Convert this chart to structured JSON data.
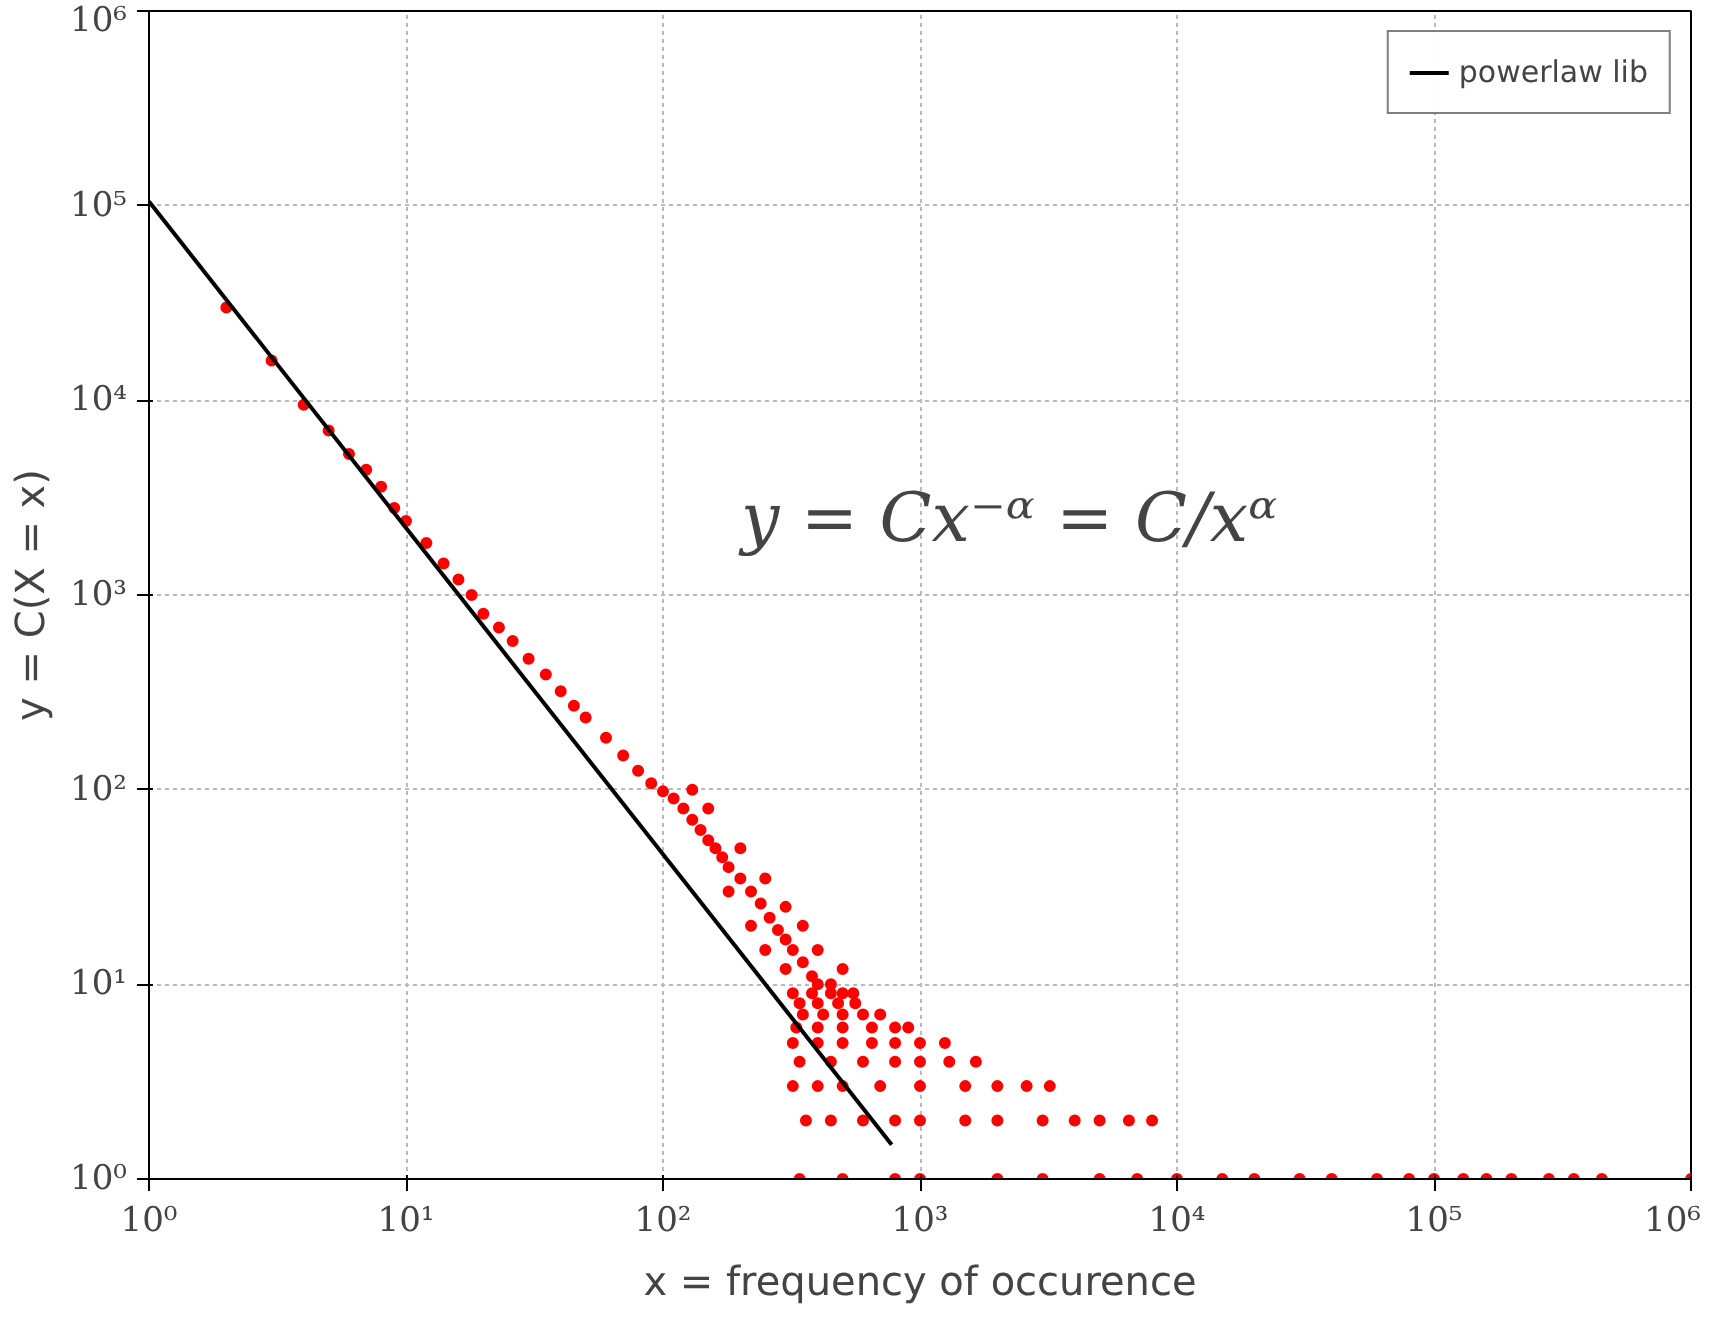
{
  "chart_data": {
    "type": "scatter",
    "xlabel": "x = frequency of occurence",
    "ylabel": "y = C(X = x)",
    "annotations": [
      "y = Cx⁻ᵅ = C/xᵅ"
    ],
    "log": "xy",
    "grid": true,
    "legend": "top right",
    "xlim": [
      1,
      1000000
    ],
    "ylim": [
      1,
      1000000
    ],
    "xticks": [
      {
        "value": 1,
        "label": "10⁰"
      },
      {
        "value": 10,
        "label": "10¹"
      },
      {
        "value": 100,
        "label": "10²"
      },
      {
        "value": 1000,
        "label": "10³"
      },
      {
        "value": 10000,
        "label": "10⁴"
      },
      {
        "value": 100000,
        "label": "10⁵"
      },
      {
        "value": 1000000,
        "label": "10⁶"
      }
    ],
    "yticks": [
      {
        "value": 1,
        "label": "10⁰"
      },
      {
        "value": 10,
        "label": "10¹"
      },
      {
        "value": 100,
        "label": "10²"
      },
      {
        "value": 1000,
        "label": "10³"
      },
      {
        "value": 10000,
        "label": "10⁴"
      },
      {
        "value": 100000,
        "label": "10⁵"
      },
      {
        "value": 1000000,
        "label": "10⁶"
      }
    ],
    "series": [
      {
        "marker": "circle",
        "color": "#ff0000",
        "x": [
          2,
          3,
          4,
          5,
          6,
          7,
          8,
          9,
          10,
          12,
          14,
          16,
          18,
          20,
          23,
          26,
          30,
          35,
          40,
          45,
          50,
          60,
          70,
          80,
          90,
          100,
          110,
          120,
          130,
          140,
          150,
          160,
          170,
          180,
          200,
          220,
          240,
          260,
          280,
          300,
          320,
          350,
          380,
          400,
          130,
          150,
          200,
          250,
          300,
          400,
          350,
          500,
          450,
          300,
          250,
          220,
          180,
          320,
          380,
          450,
          500,
          550,
          340,
          400,
          480,
          560,
          350,
          420,
          500,
          600,
          700,
          330,
          400,
          500,
          650,
          800,
          900,
          320,
          400,
          500,
          650,
          800,
          1000,
          1250,
          340,
          450,
          600,
          800,
          1000,
          1300,
          1650,
          320,
          400,
          500,
          700,
          1000,
          1500,
          2000,
          2600,
          3200,
          360,
          450,
          600,
          800,
          1000,
          1500,
          2000,
          3000,
          4000,
          5000,
          6500,
          8000,
          340,
          500,
          800,
          1000,
          2000,
          3000,
          5000,
          7000,
          10000,
          15000,
          20000,
          30000,
          40000,
          60000,
          80000,
          100000,
          130000,
          160000,
          200000,
          280000,
          350000,
          450000,
          1000000
        ],
        "values": [
          30000,
          16000,
          9500,
          7000,
          5300,
          4400,
          3600,
          2800,
          2400,
          1850,
          1450,
          1200,
          1000,
          800,
          680,
          580,
          470,
          390,
          320,
          270,
          235,
          185,
          150,
          125,
          108,
          98,
          90,
          80,
          70,
          62,
          55,
          50,
          45,
          40,
          35,
          30,
          26,
          22,
          19,
          17,
          15,
          13,
          11,
          10,
          100,
          80,
          50,
          35,
          25,
          15,
          20,
          12,
          10,
          12,
          15,
          20,
          30,
          9,
          9,
          9,
          9,
          9,
          8,
          8,
          8,
          8,
          7,
          7,
          7,
          7,
          7,
          6,
          6,
          6,
          6,
          6,
          6,
          5,
          5,
          5,
          5,
          5,
          5,
          5,
          4,
          4,
          4,
          4,
          4,
          4,
          4,
          3,
          3,
          3,
          3,
          3,
          3,
          3,
          3,
          3,
          2,
          2,
          2,
          2,
          2,
          2,
          2,
          2,
          2,
          2,
          2,
          2,
          1,
          1,
          1,
          1,
          1,
          1,
          1,
          1,
          1,
          1,
          1,
          1,
          1,
          1,
          1,
          1,
          1,
          1,
          1,
          1,
          1,
          1,
          1
        ]
      },
      {
        "type": "line",
        "name": "powerlaw lib",
        "color": "#000000",
        "x": [
          1,
          776
        ],
        "values": [
          105000,
          1.5
        ]
      }
    ]
  }
}
